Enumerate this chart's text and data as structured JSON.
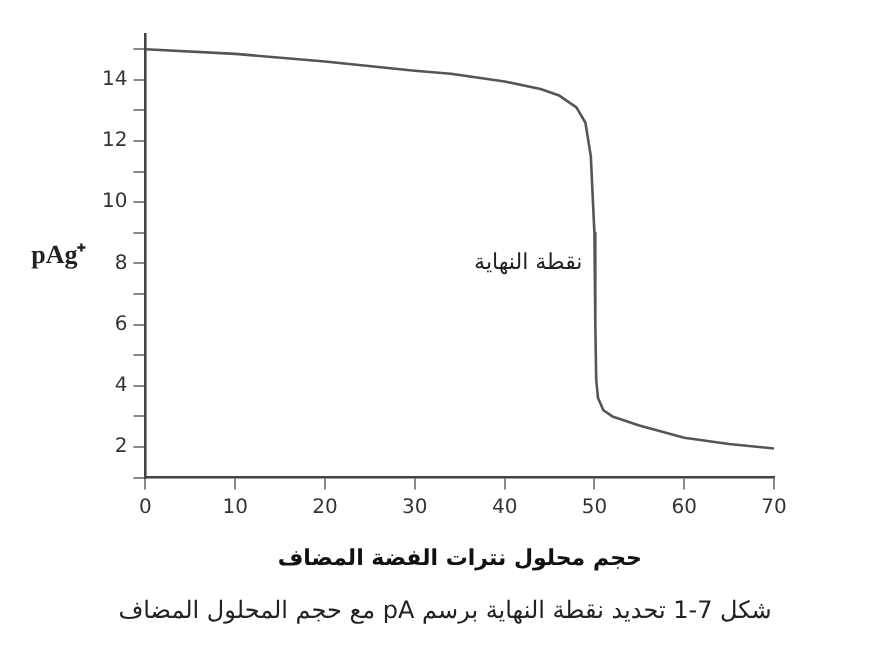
{
  "chart_data": {
    "type": "line",
    "ylabel": "pAg⁺",
    "xlabel": "حجم محلول نترات الفضة المضاف",
    "x": [
      0,
      10,
      20,
      30,
      34,
      40,
      44,
      46,
      48,
      49,
      49.6,
      50,
      50.1,
      50.2,
      50.4,
      51,
      52,
      55,
      60,
      65,
      70
    ],
    "series": [
      {
        "color": "#555555",
        "values": [
          15.0,
          14.85,
          14.6,
          14.3,
          14.2,
          13.95,
          13.7,
          13.5,
          13.1,
          12.6,
          11.5,
          9,
          6,
          4.2,
          3.6,
          3.2,
          3.0,
          2.7,
          2.3,
          2.1,
          1.95
        ]
      }
    ],
    "xlim": [
      0,
      70
    ],
    "xticks": [
      0,
      10,
      20,
      30,
      40,
      50,
      60,
      70
    ],
    "ylim": [
      1,
      15.5
    ],
    "yticks": [
      {
        "value": 1,
        "label": null
      },
      2,
      {
        "value": 3,
        "label": null
      },
      4,
      {
        "value": 5,
        "label": null
      },
      6,
      {
        "value": 7,
        "label": null
      },
      8,
      {
        "value": 9,
        "label": null
      },
      10,
      {
        "value": 11,
        "label": null
      },
      12,
      {
        "value": 13,
        "label": null
      },
      14,
      {
        "value": 15,
        "label": null
      }
    ],
    "grid": false,
    "legend": false,
    "marker": "none",
    "line_style": "solid",
    "annotations": [
      {
        "text": "نقطة النهاية",
        "x": 50,
        "y": 8
      },
      "شكل 7-1 تحديد نقطة النهاية برسم pA مع حجم المحلول المضاف"
    ]
  }
}
